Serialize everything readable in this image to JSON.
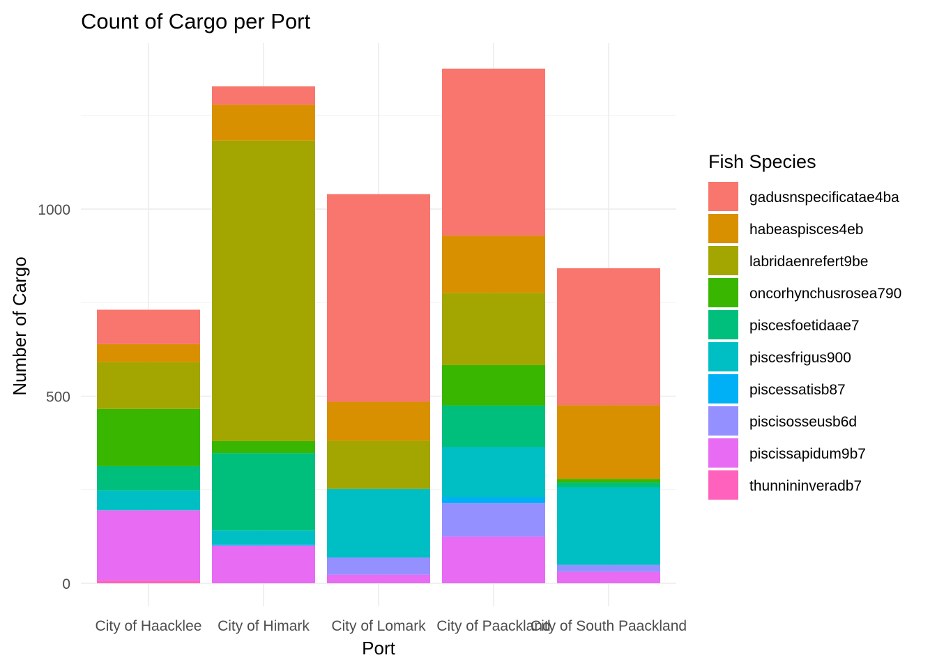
{
  "chart_data": {
    "type": "bar",
    "stacked": true,
    "title": "Count of Cargo per Port",
    "xlabel": "Port",
    "ylabel": "Number of Cargo",
    "ylim": [
      0,
      1400
    ],
    "yticks": [
      0,
      500,
      1000
    ],
    "grid": true,
    "legend_position": "right",
    "legend_title": "Fish Species",
    "categories": [
      "City of Haacklee",
      "City of Himark",
      "City of Lomark",
      "City of Paackland",
      "City of South Paackland"
    ],
    "series": [
      {
        "name": "gadusnspecificatae4ba",
        "color": "#F8766D",
        "values": [
          92,
          49,
          555,
          446,
          366
        ]
      },
      {
        "name": "habeaspisces4eb",
        "color": "#D89000",
        "values": [
          48,
          96,
          104,
          153,
          197
        ]
      },
      {
        "name": "labridaenrefert9be",
        "color": "#A3A500",
        "values": [
          125,
          803,
          129,
          193,
          0
        ]
      },
      {
        "name": "oncorhynchusrosea790",
        "color": "#39B600",
        "values": [
          153,
          32,
          0,
          108,
          10
        ]
      },
      {
        "name": "piscesfoetidaae7",
        "color": "#00BF7D",
        "values": [
          65,
          207,
          0,
          111,
          13
        ]
      },
      {
        "name": "piscesfrigus900",
        "color": "#00BFC4",
        "values": [
          53,
          38,
          183,
          134,
          207
        ]
      },
      {
        "name": "piscessatisb87",
        "color": "#00B0F6",
        "values": [
          0,
          2,
          0,
          16,
          0
        ]
      },
      {
        "name": "piscisosseusb6d",
        "color": "#9590FF",
        "values": [
          0,
          0,
          46,
          89,
          19
        ]
      },
      {
        "name": "piscissapidum9b7",
        "color": "#E76BF3",
        "values": [
          187,
          101,
          23,
          125,
          30
        ]
      },
      {
        "name": "thunnininveradb7",
        "color": "#FF62BC",
        "values": [
          8,
          0,
          0,
          0,
          0
        ]
      }
    ]
  }
}
